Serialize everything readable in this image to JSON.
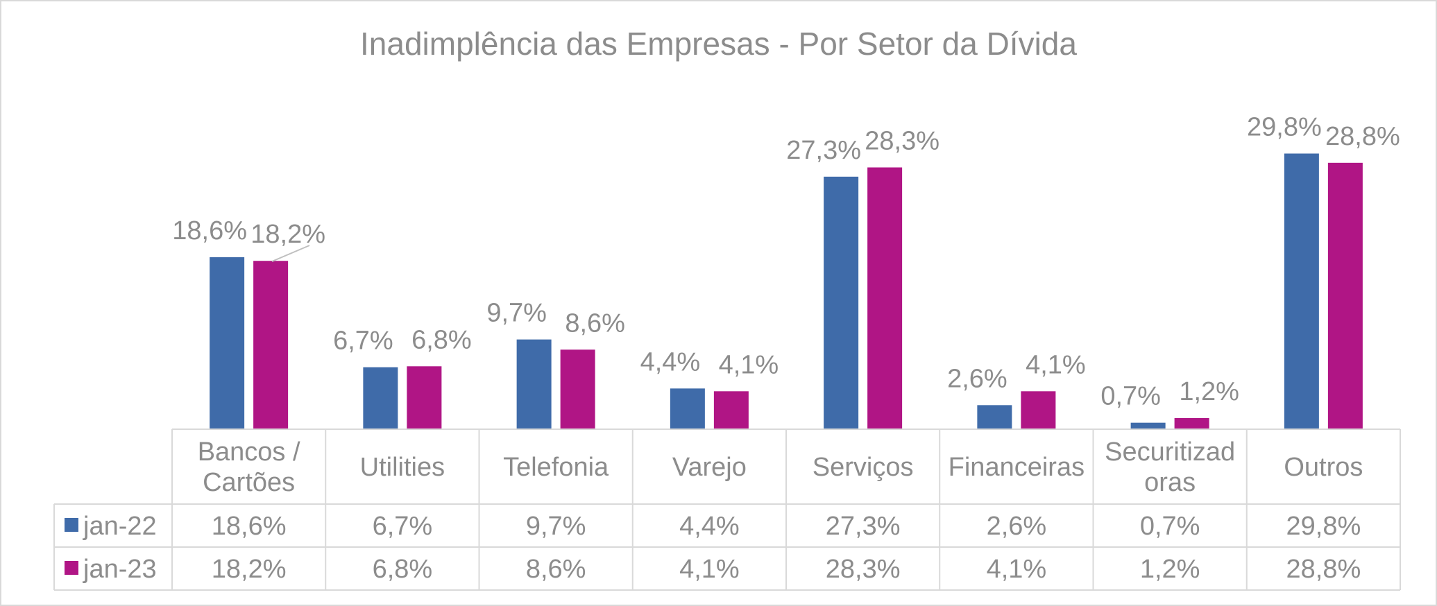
{
  "chart_data": {
    "type": "bar",
    "title": "Inadimplência das Empresas - Por Setor da Dívida",
    "categories": [
      [
        "Bancos /",
        "Cartões"
      ],
      [
        "Utilities"
      ],
      [
        "Telefonia"
      ],
      [
        "Varejo"
      ],
      [
        "Serviços"
      ],
      [
        "Financeiras"
      ],
      [
        "Securitizad",
        "oras"
      ],
      [
        "Outros"
      ]
    ],
    "series": [
      {
        "name": "jan-22",
        "color": "#3f6ba9",
        "values": [
          18.6,
          6.7,
          9.7,
          4.4,
          27.3,
          2.6,
          0.7,
          29.8
        ],
        "labels": [
          "18,6%",
          "6,7%",
          "9,7%",
          "4,4%",
          "27,3%",
          "2,6%",
          "0,7%",
          "29,8%"
        ]
      },
      {
        "name": "jan-23",
        "color": "#b01585",
        "values": [
          18.2,
          6.8,
          8.6,
          4.1,
          28.3,
          4.1,
          1.2,
          28.8
        ],
        "labels": [
          "18,2%",
          "6,8%",
          "8,6%",
          "4,1%",
          "28,3%",
          "4,1%",
          "1,2%",
          "28,8%"
        ]
      }
    ],
    "ylim": [
      0,
      35
    ],
    "legend": "data-table",
    "grid": false,
    "xlabel": "",
    "ylabel": ""
  }
}
